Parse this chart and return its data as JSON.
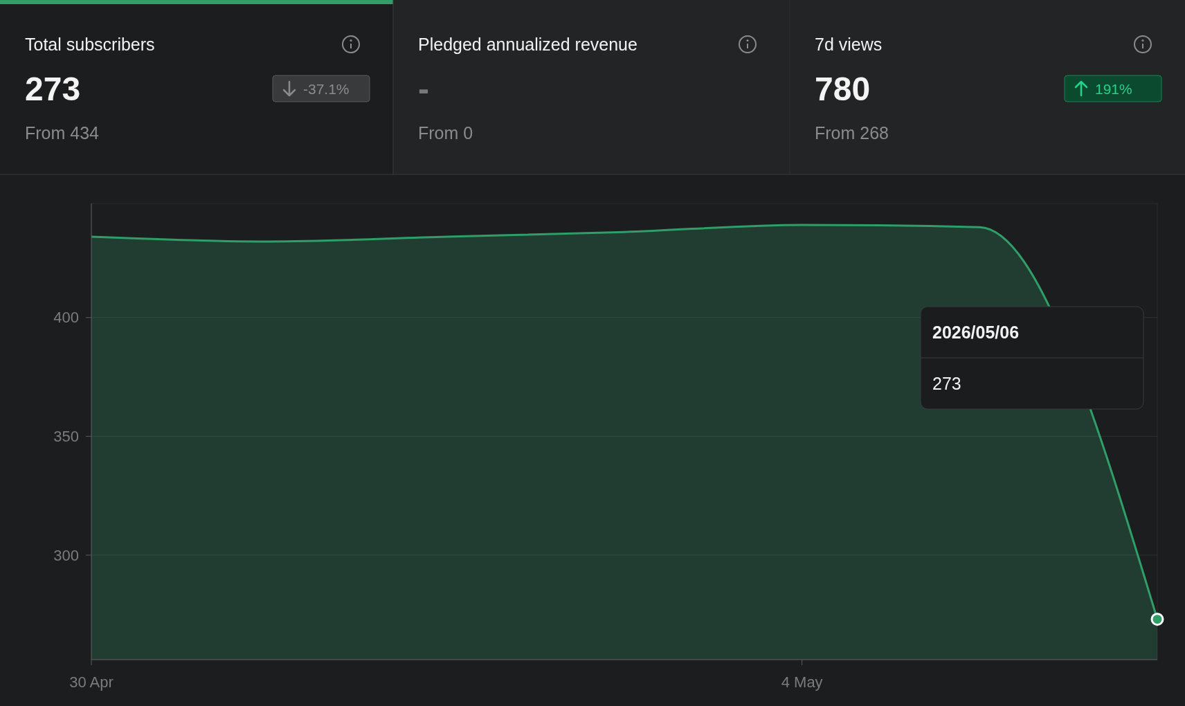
{
  "chart_data": [
    {
      "type": "other",
      "title": "Total subscribers",
      "annotations": [
        "273",
        "From 434"
      ],
      "values": [
        -37.1
      ],
      "value_labels": [
        "-37.1%"
      ]
    },
    {
      "type": "other",
      "title": "Pledged annualized revenue",
      "annotations": [
        "-",
        "From 0"
      ]
    },
    {
      "type": "other",
      "title": "7d views",
      "annotations": [
        "780",
        "From 268"
      ],
      "values": [
        191
      ],
      "value_labels": [
        "191%"
      ]
    },
    {
      "type": "area",
      "x": [
        "2026-04-30",
        "2026-05-01",
        "2026-05-02",
        "2026-05-03",
        "2026-05-04",
        "2026-05-05",
        "2026-05-06"
      ],
      "series": [
        {
          "color": "#2f9e69",
          "values": [
            434,
            432,
            434,
            436,
            439,
            438,
            273
          ]
        }
      ],
      "xlim": [
        "2026-04-30",
        "2026-05-06"
      ],
      "xticks": [
        {
          "value": "2026-04-30",
          "label": "30 Apr"
        },
        {
          "value": "2026-05-04",
          "label": "4 May"
        }
      ],
      "ylim": [
        256,
        448
      ],
      "yticks": [
        300,
        350,
        400
      ],
      "grid": "y",
      "marker": "none",
      "annotations": [
        "2026/05/06",
        "273"
      ]
    }
  ]
}
